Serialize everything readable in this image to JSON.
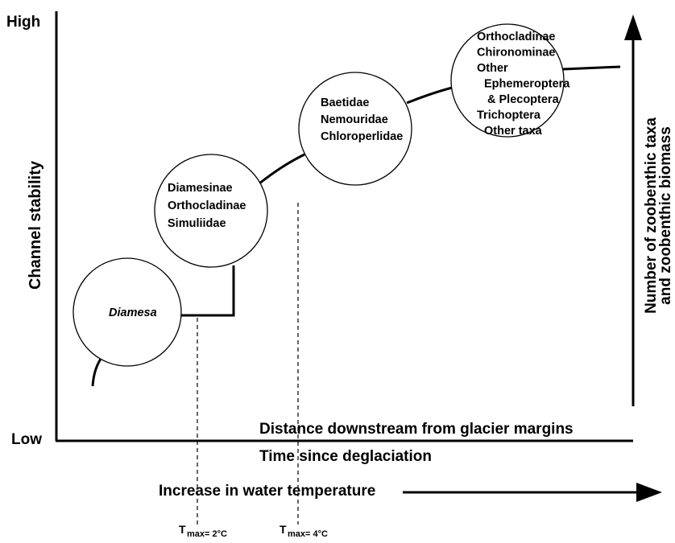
{
  "axes": {
    "y_high": "High",
    "y_low": "Low",
    "y_label": "Channel stability",
    "x_label_top": "Distance downstream from glacier margins",
    "x_label_bottom": "Time since deglaciation",
    "right_label": [
      "Number of zoobenthic taxa",
      "and zoobenthic biomass"
    ],
    "temperature_label": "Increase in water temperature"
  },
  "circles": [
    {
      "taxa": [
        "Diamesa"
      ]
    },
    {
      "taxa": [
        "Diamesinae",
        "Orthocladinae",
        "Simuliidae"
      ]
    },
    {
      "taxa": [
        "Baetidae",
        "Nemouridae",
        "Chloroperlidae"
      ]
    },
    {
      "taxa": [
        "Orthocladinae",
        "Chironominae",
        "Other",
        "Ephemeroptera",
        "& Plecoptera",
        "Trichoptera",
        "Other taxa"
      ]
    }
  ],
  "thresholds": [
    {
      "symbol": "T",
      "subscript": "max= 2°C"
    },
    {
      "symbol": "T",
      "subscript": "max= 4°C"
    }
  ]
}
